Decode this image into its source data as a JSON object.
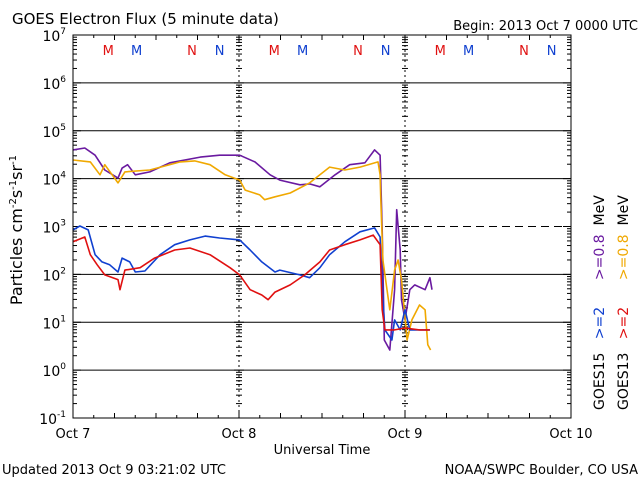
{
  "chart_data": {
    "type": "line",
    "title": "GOES Electron Flux (5 minute data)",
    "begin_label": "Begin: 2013 Oct 7 0000 UTC",
    "xlabel": "Universal Time",
    "ylabel": "Particles cm-2s-1sr-1",
    "ylabel_parts": {
      "base": "Particles cm",
      "e1": "-2",
      "s": "s",
      "e2": "-1",
      "sr": "sr",
      "e3": "-1"
    },
    "x_unit": "hours since 2013 Oct 7 0000 UTC",
    "xlim": [
      0,
      72
    ],
    "y_scale": "log10",
    "ylim_log10": [
      -1,
      7
    ],
    "y_ticks": [
      {
        "base": "10",
        "exp": "7",
        "log": 7
      },
      {
        "base": "10",
        "exp": "6",
        "log": 6
      },
      {
        "base": "10",
        "exp": "5",
        "log": 5
      },
      {
        "base": "10",
        "exp": "4",
        "log": 4
      },
      {
        "base": "10",
        "exp": "3",
        "log": 3
      },
      {
        "base": "10",
        "exp": "2",
        "log": 2
      },
      {
        "base": "10",
        "exp": "1",
        "log": 1
      },
      {
        "base": "10",
        "exp": "0",
        "log": 0
      },
      {
        "base": "10",
        "exp": "-1",
        "log": -1
      }
    ],
    "x_ticks": [
      {
        "label": "Oct 7",
        "hour": 0
      },
      {
        "label": "Oct 8",
        "hour": 24
      },
      {
        "label": "Oct 9",
        "hour": 48
      },
      {
        "label": "Oct 10",
        "hour": 72
      }
    ],
    "threshold_lines": [
      {
        "log": 3,
        "style": "dashed"
      }
    ],
    "grid": true,
    "markers": [
      {
        "label": "M",
        "hour": 5.1,
        "color": "#e01010"
      },
      {
        "label": "M",
        "hour": 9.2,
        "color": "#1040d0"
      },
      {
        "label": "N",
        "hour": 17.2,
        "color": "#e01010"
      },
      {
        "label": "N",
        "hour": 21.2,
        "color": "#1040d0"
      },
      {
        "label": "M",
        "hour": 29.1,
        "color": "#e01010"
      },
      {
        "label": "M",
        "hour": 33.2,
        "color": "#1040d0"
      },
      {
        "label": "N",
        "hour": 41.2,
        "color": "#e01010"
      },
      {
        "label": "N",
        "hour": 45.2,
        "color": "#1040d0"
      },
      {
        "label": "M",
        "hour": 53.1,
        "color": "#e01010"
      },
      {
        "label": "M",
        "hour": 57.2,
        "color": "#1040d0"
      },
      {
        "label": "N",
        "hour": 65.2,
        "color": "#e01010"
      },
      {
        "label": "N",
        "hour": 69.2,
        "color": "#1040d0"
      }
    ],
    "legend": {
      "placement": "right",
      "rows": [
        {
          "satellite": "GOES15",
          "hi": ">=2",
          "lo": ">=0.8",
          "unit": "MeV",
          "hi_color": "#1040d0",
          "lo_color": "#6a1aa0"
        },
        {
          "satellite": "GOES13",
          "hi": ">=2",
          "lo": ">=0.8",
          "unit": "MeV",
          "hi_color": "#e01010",
          "lo_color": "#f0a800"
        }
      ]
    },
    "series": [
      {
        "name": "GOES15 >=0.8 MeV",
        "color": "#6a1aa0",
        "points_log10": [
          [
            0,
            4.6
          ],
          [
            1.7,
            4.64
          ],
          [
            3.2,
            4.49
          ],
          [
            4.6,
            4.18
          ],
          [
            6.5,
            4.01
          ],
          [
            7.1,
            4.22
          ],
          [
            7.9,
            4.29
          ],
          [
            9.0,
            4.08
          ],
          [
            11.1,
            4.14
          ],
          [
            14.0,
            4.33
          ],
          [
            18.4,
            4.45
          ],
          [
            21.2,
            4.49
          ],
          [
            24.1,
            4.49
          ],
          [
            26.3,
            4.35
          ],
          [
            28.5,
            4.08
          ],
          [
            29.9,
            3.97
          ],
          [
            32.8,
            3.87
          ],
          [
            34.2,
            3.89
          ],
          [
            35.7,
            3.83
          ],
          [
            37.9,
            4.08
          ],
          [
            40.0,
            4.29
          ],
          [
            42.2,
            4.33
          ],
          [
            43.6,
            4.6
          ],
          [
            44.4,
            4.49
          ],
          [
            44.7,
            2.93
          ],
          [
            45.0,
            0.63
          ],
          [
            45.8,
            0.42
          ],
          [
            46.5,
            1.68
          ],
          [
            46.8,
            3.35
          ],
          [
            47.3,
            2.51
          ],
          [
            47.5,
            1.47
          ],
          [
            48.0,
            1.05
          ],
          [
            48.7,
            1.68
          ],
          [
            49.4,
            1.78
          ],
          [
            50.9,
            1.68
          ],
          [
            51.6,
            1.93
          ],
          [
            51.9,
            1.68
          ]
        ]
      },
      {
        "name": "GOES13 >=0.8 MeV",
        "color": "#f0a800",
        "points_log10": [
          [
            0,
            4.39
          ],
          [
            2.5,
            4.35
          ],
          [
            3.9,
            4.08
          ],
          [
            4.6,
            4.29
          ],
          [
            6.5,
            3.91
          ],
          [
            7.5,
            4.14
          ],
          [
            11.1,
            4.18
          ],
          [
            15.5,
            4.35
          ],
          [
            17.6,
            4.37
          ],
          [
            19.8,
            4.29
          ],
          [
            22.0,
            4.08
          ],
          [
            24.1,
            3.97
          ],
          [
            24.9,
            3.76
          ],
          [
            27.0,
            3.66
          ],
          [
            27.7,
            3.56
          ],
          [
            29.2,
            3.62
          ],
          [
            31.4,
            3.7
          ],
          [
            34.2,
            3.91
          ],
          [
            37.1,
            4.24
          ],
          [
            39.3,
            4.18
          ],
          [
            41.5,
            4.24
          ],
          [
            44.1,
            4.35
          ],
          [
            44.4,
            4.08
          ],
          [
            44.5,
            3.56
          ],
          [
            44.8,
            2.3
          ],
          [
            45.4,
            1.68
          ],
          [
            45.8,
            1.26
          ],
          [
            46.5,
            2.09
          ],
          [
            47.0,
            2.3
          ],
          [
            47.5,
            1.89
          ],
          [
            48.3,
            0.63
          ],
          [
            49.0,
            1.05
          ],
          [
            50.1,
            1.36
          ],
          [
            50.9,
            1.26
          ],
          [
            51.3,
            0.53
          ],
          [
            51.7,
            0.42
          ]
        ]
      },
      {
        "name": "GOES15 >=2 MeV",
        "color": "#1040d0",
        "points_log10": [
          [
            0,
            2.93
          ],
          [
            1.0,
            3.01
          ],
          [
            2.2,
            2.93
          ],
          [
            3.2,
            2.41
          ],
          [
            4.2,
            2.26
          ],
          [
            5.3,
            2.2
          ],
          [
            6.5,
            2.05
          ],
          [
            7.1,
            2.34
          ],
          [
            8.2,
            2.26
          ],
          [
            9.0,
            2.05
          ],
          [
            10.4,
            2.07
          ],
          [
            12.6,
            2.41
          ],
          [
            14.7,
            2.62
          ],
          [
            16.9,
            2.72
          ],
          [
            19.1,
            2.8
          ],
          [
            21.2,
            2.76
          ],
          [
            24.1,
            2.72
          ],
          [
            25.6,
            2.51
          ],
          [
            27.3,
            2.26
          ],
          [
            29.2,
            2.05
          ],
          [
            29.9,
            2.09
          ],
          [
            32.8,
            1.99
          ],
          [
            34.2,
            1.93
          ],
          [
            35.7,
            2.14
          ],
          [
            37.1,
            2.41
          ],
          [
            39.3,
            2.68
          ],
          [
            41.5,
            2.89
          ],
          [
            43.6,
            2.97
          ],
          [
            44.4,
            2.78
          ],
          [
            44.8,
            1.47
          ],
          [
            45.1,
            0.84
          ],
          [
            46.1,
            0.63
          ],
          [
            46.5,
            1.05
          ],
          [
            47.3,
            0.84
          ],
          [
            48.0,
            1.26
          ],
          [
            48.7,
            0.84
          ],
          [
            50.1,
            0.84
          ],
          [
            51.6,
            0.84
          ]
        ]
      },
      {
        "name": "GOES13 >=2 MeV",
        "color": "#e01010",
        "points_log10": [
          [
            0,
            2.68
          ],
          [
            1.7,
            2.78
          ],
          [
            2.5,
            2.41
          ],
          [
            3.5,
            2.2
          ],
          [
            4.6,
            1.99
          ],
          [
            6.5,
            1.89
          ],
          [
            6.8,
            1.68
          ],
          [
            7.5,
            2.09
          ],
          [
            9.7,
            2.14
          ],
          [
            11.8,
            2.34
          ],
          [
            14.7,
            2.51
          ],
          [
            16.9,
            2.55
          ],
          [
            19.8,
            2.41
          ],
          [
            22.7,
            2.14
          ],
          [
            24.1,
            1.99
          ],
          [
            25.6,
            1.68
          ],
          [
            27.3,
            1.57
          ],
          [
            28.2,
            1.47
          ],
          [
            29.2,
            1.63
          ],
          [
            31.4,
            1.78
          ],
          [
            33.5,
            1.99
          ],
          [
            35.7,
            2.26
          ],
          [
            37.1,
            2.51
          ],
          [
            39.3,
            2.62
          ],
          [
            41.5,
            2.72
          ],
          [
            43.4,
            2.82
          ],
          [
            44.4,
            2.62
          ],
          [
            44.7,
            1.26
          ],
          [
            45.1,
            0.84
          ],
          [
            46.5,
            0.84
          ],
          [
            48.0,
            0.88
          ],
          [
            50.1,
            0.84
          ],
          [
            51.6,
            0.84
          ]
        ]
      }
    ]
  },
  "footer": {
    "updated": "Updated 2013 Oct  9 03:21:02 UTC",
    "credit": "NOAA/SWPC Boulder, CO USA"
  }
}
